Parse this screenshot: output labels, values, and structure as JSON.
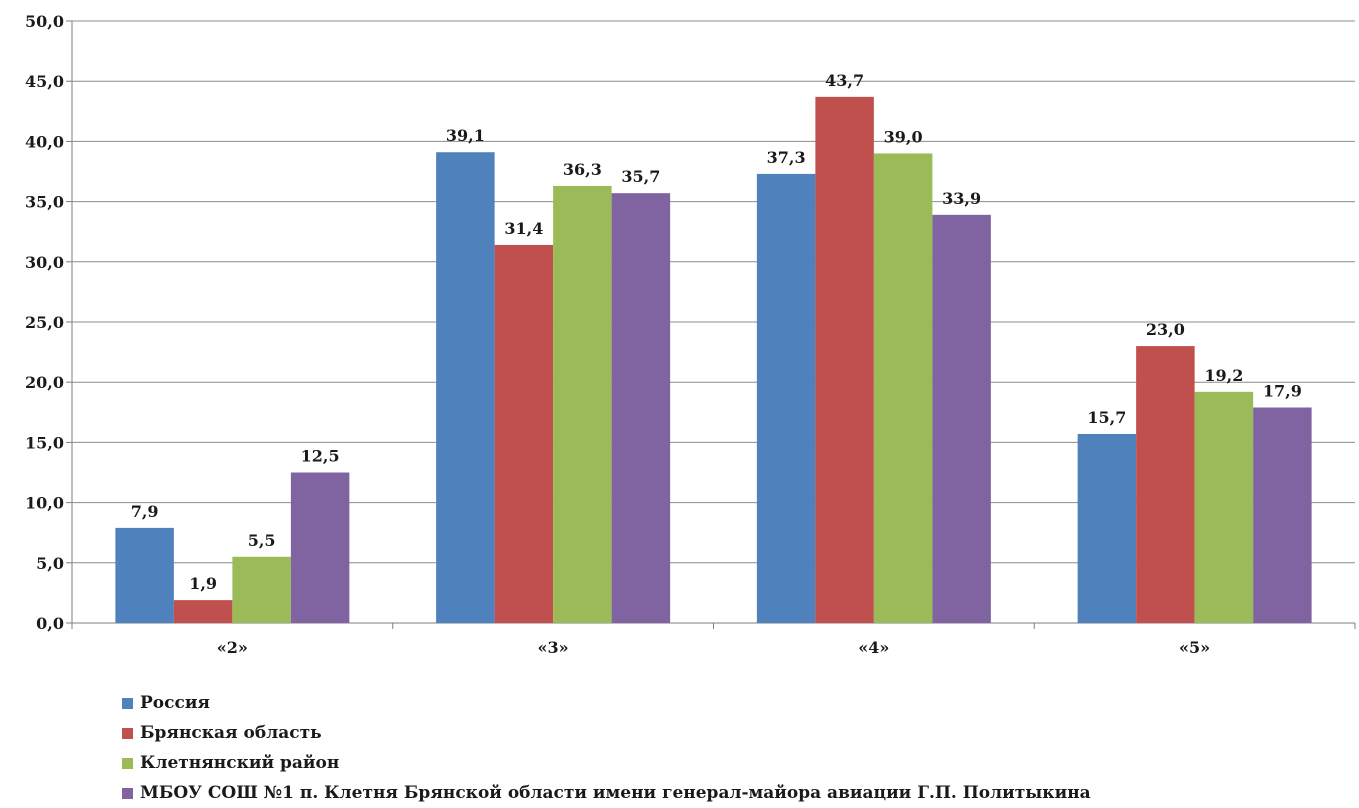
{
  "chart_data": {
    "type": "bar",
    "title": "",
    "xlabel": "",
    "ylabel": "",
    "categories": [
      "«2»",
      "«3»",
      "«4»",
      "«5»"
    ],
    "series": [
      {
        "name": "Россия",
        "color": "#4f81bd",
        "values": [
          7.9,
          39.1,
          37.3,
          15.7
        ],
        "labels": [
          "7,9",
          "39,1",
          "37,3",
          "15,7"
        ]
      },
      {
        "name": "Брянская область",
        "color": "#c0504d",
        "values": [
          1.9,
          31.4,
          43.7,
          23.0
        ],
        "labels": [
          "1,9",
          "31,4",
          "43,7",
          "23,0"
        ]
      },
      {
        "name": "Клетнянский район",
        "color": "#9bbb59",
        "values": [
          5.5,
          36.3,
          39.0,
          19.2
        ],
        "labels": [
          "5,5",
          "36,3",
          "39,0",
          "19,2"
        ]
      },
      {
        "name": "МБОУ СОШ №1 п. Клетня Брянской области имени генерал-майора авиации Г.П. Политыкина",
        "color": "#8064a2",
        "values": [
          12.5,
          35.7,
          33.9,
          17.9
        ],
        "labels": [
          "12,5",
          "35,7",
          "33,9",
          "17,9"
        ]
      }
    ],
    "ylim": [
      0,
      50
    ],
    "yticks": [
      0,
      5,
      10,
      15,
      20,
      25,
      30,
      35,
      40,
      45,
      50
    ],
    "ytick_labels": [
      "0,0",
      "5,0",
      "10,0",
      "15,0",
      "20,0",
      "25,0",
      "30,0",
      "35,0",
      "40,0",
      "45,0",
      "50,0"
    ],
    "grid": true,
    "legend_position": "bottom-left"
  }
}
